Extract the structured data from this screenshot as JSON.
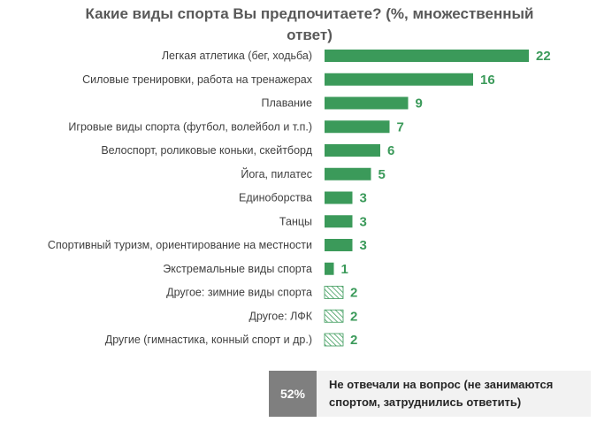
{
  "chart_data": {
    "type": "bar",
    "orientation": "horizontal",
    "title": "Какие виды спорта Вы предпочитаете? (%, множественный ответ)",
    "categories": [
      "Легкая атлетика (бег, ходьба)",
      "Силовые тренировки, работа на тренажерах",
      "Плавание",
      "Игровые виды спорта (футбол, волейбол и т.п.)",
      "Велоспорт, роликовые коньки, скейтборд",
      "Йога, пилатес",
      "Единоборства",
      "Танцы",
      "Спортивный туризм, ориентирование на местности",
      "Экстремальные виды спорта",
      "Другое: зимние виды спорта",
      "Другое: ЛФК",
      "Другие (гимнастика, конный спорт и др.)"
    ],
    "values": [
      22,
      16,
      9,
      7,
      6,
      5,
      3,
      3,
      3,
      1,
      2,
      2,
      2
    ],
    "fill": [
      "solid",
      "solid",
      "solid",
      "solid",
      "solid",
      "solid",
      "solid",
      "solid",
      "solid",
      "solid",
      "hatched",
      "hatched",
      "hatched"
    ],
    "xlim": [
      0,
      22
    ],
    "grid": false,
    "legend": "none",
    "colors": {
      "bar": "#3b9a5a",
      "value_label": "#3b9a5a",
      "category_label": "#404040"
    }
  },
  "note": {
    "percent": "52%",
    "text": "Не отвечали на вопрос (не занимаются спортом, затруднились ответить)"
  },
  "colors": {
    "title": "#595959",
    "note_badge": "#7f7f7f",
    "note_background": "#f2f2f2"
  }
}
